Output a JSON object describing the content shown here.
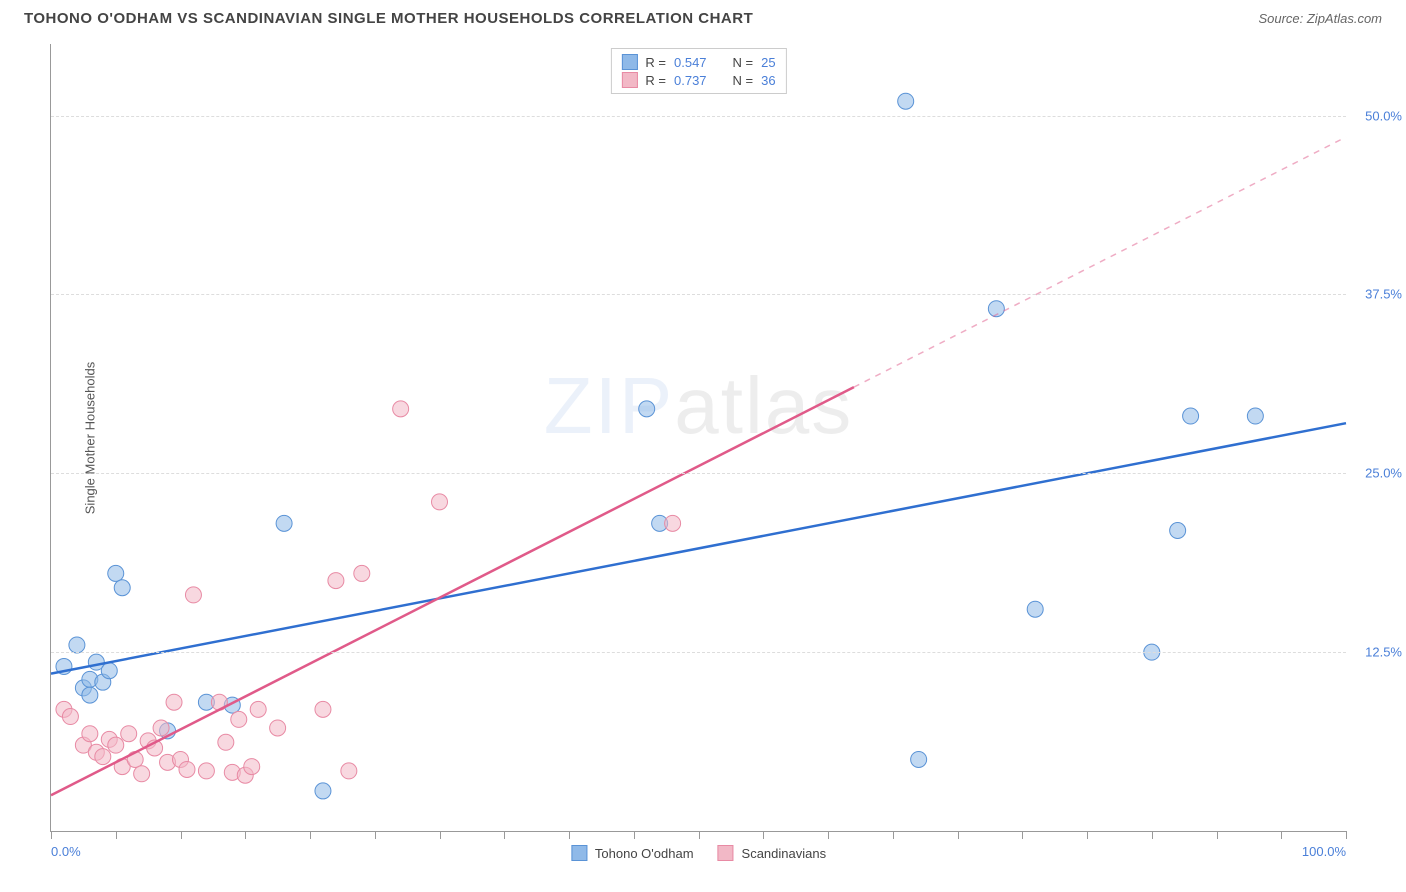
{
  "title": "TOHONO O'ODHAM VS SCANDINAVIAN SINGLE MOTHER HOUSEHOLDS CORRELATION CHART",
  "source_label": "Source: ZipAtlas.com",
  "watermark": {
    "part1": "ZIP",
    "part2": "atlas"
  },
  "y_axis_title": "Single Mother Households",
  "chart": {
    "type": "scatter",
    "xlim": [
      0,
      100
    ],
    "ylim": [
      0,
      55
    ],
    "y_ticks": [
      {
        "value": 12.5,
        "label": "12.5%"
      },
      {
        "value": 25.0,
        "label": "25.0%"
      },
      {
        "value": 37.5,
        "label": "37.5%"
      },
      {
        "value": 50.0,
        "label": "50.0%"
      }
    ],
    "x_minor_tick_step": 5,
    "x_labels": [
      {
        "value": 0,
        "label": "0.0%"
      },
      {
        "value": 100,
        "label": "100.0%"
      }
    ],
    "background_color": "#ffffff",
    "grid_color": "#dddddd",
    "marker_radius": 8,
    "marker_opacity": 0.55,
    "line_width": 2.5,
    "series": [
      {
        "key": "tohono",
        "name": "Tohono O'odham",
        "color": "#8fb9e8",
        "stroke": "#5a93d6",
        "line_color": "#2f6fd0",
        "r": 0.547,
        "n": 25,
        "trend": {
          "x1": 0,
          "y1": 11.0,
          "x2": 100,
          "y2": 28.5,
          "dash_from_x": null
        },
        "points": [
          [
            1,
            11.5
          ],
          [
            2,
            13.0
          ],
          [
            2.5,
            10.0
          ],
          [
            3,
            10.6
          ],
          [
            3.5,
            11.8
          ],
          [
            3,
            9.5
          ],
          [
            4,
            10.4
          ],
          [
            4.5,
            11.2
          ],
          [
            5,
            18.0
          ],
          [
            5.5,
            17.0
          ],
          [
            9,
            7.0
          ],
          [
            12,
            9.0
          ],
          [
            14,
            8.8
          ],
          [
            18,
            21.5
          ],
          [
            21,
            2.8
          ],
          [
            46,
            29.5
          ],
          [
            47,
            21.5
          ],
          [
            66,
            51.0
          ],
          [
            67,
            5.0
          ],
          [
            73,
            36.5
          ],
          [
            76,
            15.5
          ],
          [
            85,
            12.5
          ],
          [
            87,
            21.0
          ],
          [
            88,
            29.0
          ],
          [
            93,
            29.0
          ]
        ]
      },
      {
        "key": "scand",
        "name": "Scandinavians",
        "color": "#f2b8c6",
        "stroke": "#e88aa4",
        "line_color": "#e05a89",
        "r": 0.737,
        "n": 36,
        "trend": {
          "x1": 0,
          "y1": 2.5,
          "x2": 100,
          "y2": 48.5,
          "dash_from_x": 62
        },
        "points": [
          [
            1,
            8.5
          ],
          [
            1.5,
            8.0
          ],
          [
            2.5,
            6.0
          ],
          [
            3,
            6.8
          ],
          [
            3.5,
            5.5
          ],
          [
            4,
            5.2
          ],
          [
            4.5,
            6.4
          ],
          [
            5,
            6.0
          ],
          [
            5.5,
            4.5
          ],
          [
            6,
            6.8
          ],
          [
            6.5,
            5.0
          ],
          [
            7,
            4.0
          ],
          [
            7.5,
            6.3
          ],
          [
            8,
            5.8
          ],
          [
            8.5,
            7.2
          ],
          [
            9,
            4.8
          ],
          [
            9.5,
            9.0
          ],
          [
            10,
            5.0
          ],
          [
            10.5,
            4.3
          ],
          [
            11,
            16.5
          ],
          [
            12,
            4.2
          ],
          [
            13,
            9.0
          ],
          [
            13.5,
            6.2
          ],
          [
            14,
            4.1
          ],
          [
            14.5,
            7.8
          ],
          [
            15,
            3.9
          ],
          [
            15.5,
            4.5
          ],
          [
            16,
            8.5
          ],
          [
            17.5,
            7.2
          ],
          [
            21,
            8.5
          ],
          [
            22,
            17.5
          ],
          [
            23,
            4.2
          ],
          [
            24,
            18.0
          ],
          [
            27,
            29.5
          ],
          [
            30,
            23.0
          ],
          [
            48,
            21.5
          ]
        ]
      }
    ]
  },
  "legend_top_labels": {
    "R": "R =",
    "N": "N ="
  }
}
